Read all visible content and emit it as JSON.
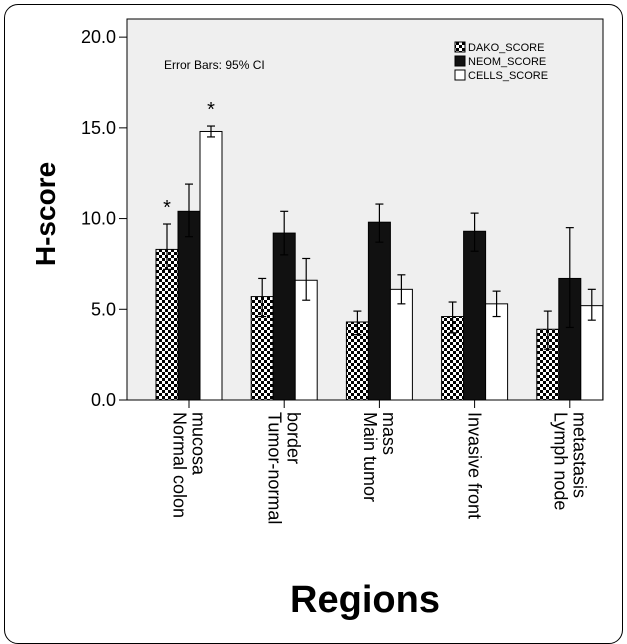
{
  "chart_data": {
    "type": "bar",
    "categories": [
      [
        "Normal colon",
        "mucosa"
      ],
      [
        "Tumor-normal",
        "border"
      ],
      [
        "Main tumor",
        "mass"
      ],
      [
        "Invasive front"
      ],
      [
        "Lymph node",
        "metastasis"
      ]
    ],
    "series": [
      {
        "name": "DAKO_SCORE",
        "values": [
          8.3,
          5.7,
          4.3,
          4.6,
          3.9
        ],
        "ci_low": [
          7.2,
          4.6,
          3.6,
          3.7,
          2.8
        ],
        "ci_high": [
          9.7,
          6.7,
          4.9,
          5.4,
          4.9
        ],
        "fill": "checker"
      },
      {
        "name": "NEOM_SCORE",
        "values": [
          10.4,
          9.2,
          9.8,
          9.3,
          6.7
        ],
        "ci_low": [
          9.0,
          8.0,
          8.7,
          8.2,
          4.0
        ],
        "ci_high": [
          11.9,
          10.4,
          10.8,
          10.3,
          9.5
        ],
        "fill": "#111111"
      },
      {
        "name": "CELLS_SCORE",
        "values": [
          14.8,
          6.6,
          6.1,
          5.3,
          5.2
        ],
        "ci_low": [
          14.5,
          5.5,
          5.3,
          4.6,
          4.4
        ],
        "ci_high": [
          15.1,
          7.8,
          6.9,
          6.0,
          6.1
        ],
        "fill": "#ffffff"
      }
    ],
    "significance": [
      {
        "category_index": 0,
        "series_index": 0,
        "label": "*"
      },
      {
        "category_index": 0,
        "series_index": 2,
        "label": "*"
      }
    ],
    "xlabel": "Regions",
    "ylabel": "H-score",
    "ylim": [
      0,
      21
    ],
    "yticks": [
      0,
      5,
      10,
      15,
      20
    ],
    "ytick_labels": [
      "0.0",
      "5.0",
      "10.0",
      "15.0",
      "20.0"
    ],
    "note": "Error Bars: 95% CI",
    "legend_position": "top-right",
    "grid": false,
    "plot_background": "#efefef"
  }
}
